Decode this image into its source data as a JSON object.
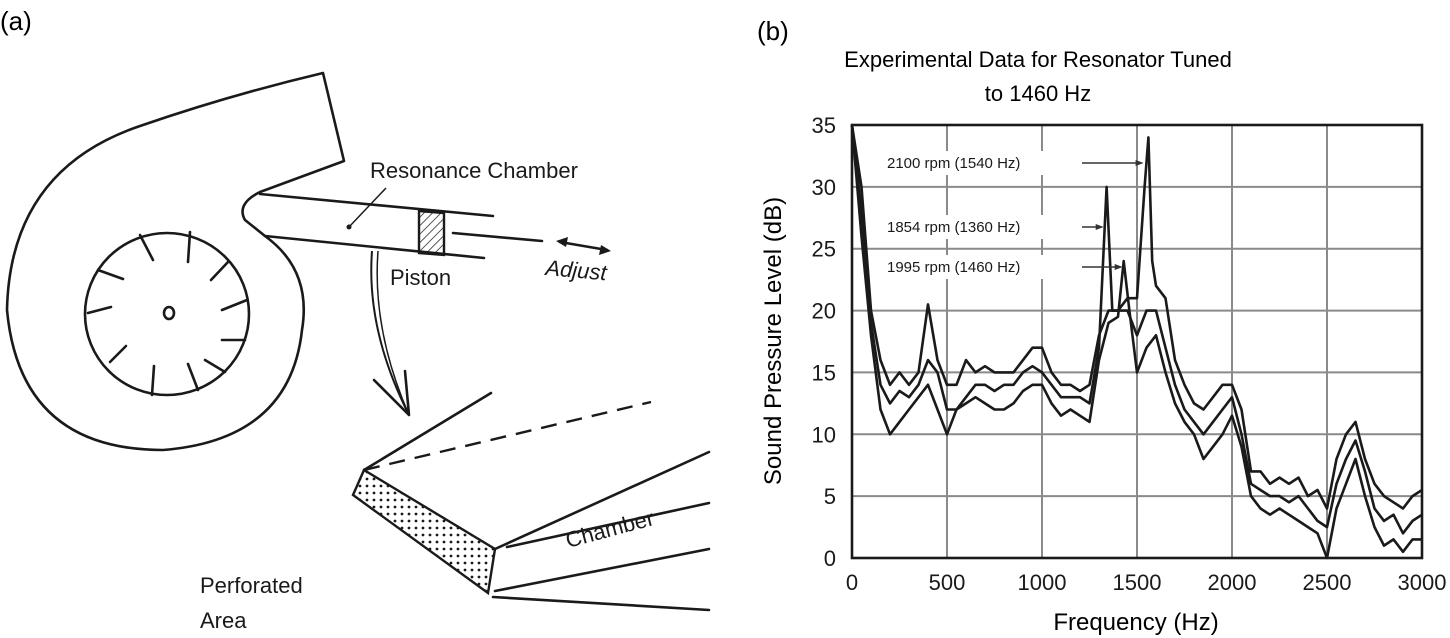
{
  "panel_a": {
    "label": "(a)",
    "resonance_chamber": "Resonance Chamber",
    "piston": "Piston",
    "adjust": "Adjust",
    "chamber": "Chamber",
    "perforated_line1": "Perforated",
    "perforated_line2": "Area"
  },
  "panel_b": {
    "label": "(b)"
  },
  "chart_data": {
    "type": "line",
    "title_line1": "Experimental Data for Resonator Tuned",
    "title_line2": "to 1460 Hz",
    "xlabel": "Frequency (Hz)",
    "ylabel": "Sound Pressure Level (dB)",
    "xlim": [
      0,
      3000
    ],
    "ylim": [
      0,
      35
    ],
    "xticks": [
      "0",
      "500",
      "1000",
      "1500",
      "2000",
      "2500",
      "3000"
    ],
    "yticks": [
      "0",
      "5",
      "10",
      "15",
      "20",
      "25",
      "30",
      "35"
    ],
    "grid": true,
    "line_color": "#1a1a1a",
    "annotations": [
      {
        "text": "2100 rpm (1540 Hz)",
        "x": 1540,
        "y": 32
      },
      {
        "text": "1854 rpm (1360 Hz)",
        "x": 1330,
        "y": 26.8
      },
      {
        "text": "1995 rpm (1460 Hz)",
        "x": 1430,
        "y": 23.5
      }
    ],
    "series": [
      {
        "points": [
          [
            0,
            35
          ],
          [
            50,
            30
          ],
          [
            100,
            20
          ],
          [
            150,
            16
          ],
          [
            200,
            14
          ],
          [
            250,
            15
          ],
          [
            300,
            14
          ],
          [
            350,
            15
          ],
          [
            400,
            20.5
          ],
          [
            450,
            16
          ],
          [
            500,
            14
          ],
          [
            550,
            14
          ],
          [
            600,
            16
          ],
          [
            650,
            15
          ],
          [
            700,
            15.5
          ],
          [
            750,
            15
          ],
          [
            800,
            15
          ],
          [
            850,
            15
          ],
          [
            900,
            16
          ],
          [
            950,
            17
          ],
          [
            1000,
            17
          ],
          [
            1050,
            15
          ],
          [
            1100,
            14
          ],
          [
            1150,
            14
          ],
          [
            1200,
            13.5
          ],
          [
            1250,
            14
          ],
          [
            1300,
            18
          ],
          [
            1350,
            20
          ],
          [
            1400,
            20
          ],
          [
            1450,
            21
          ],
          [
            1500,
            21
          ],
          [
            1540,
            30
          ],
          [
            1560,
            34
          ],
          [
            1580,
            24
          ],
          [
            1600,
            22
          ],
          [
            1650,
            21
          ],
          [
            1700,
            16
          ],
          [
            1750,
            14
          ],
          [
            1800,
            12.5
          ],
          [
            1850,
            12
          ],
          [
            1900,
            13
          ],
          [
            1950,
            14
          ],
          [
            2000,
            14
          ],
          [
            2050,
            12
          ],
          [
            2100,
            7
          ],
          [
            2150,
            7
          ],
          [
            2200,
            6
          ],
          [
            2250,
            6.5
          ],
          [
            2300,
            6
          ],
          [
            2350,
            6.5
          ],
          [
            2400,
            5
          ],
          [
            2450,
            5.5
          ],
          [
            2500,
            4
          ],
          [
            2550,
            8
          ],
          [
            2600,
            10
          ],
          [
            2650,
            11
          ],
          [
            2700,
            8
          ],
          [
            2750,
            6
          ],
          [
            2800,
            5
          ],
          [
            2850,
            4.5
          ],
          [
            2900,
            4
          ],
          [
            2950,
            5
          ],
          [
            3000,
            5.5
          ]
        ]
      },
      {
        "points": [
          [
            0,
            35
          ],
          [
            50,
            28
          ],
          [
            100,
            19
          ],
          [
            150,
            14
          ],
          [
            200,
            12.5
          ],
          [
            250,
            13.5
          ],
          [
            300,
            13
          ],
          [
            350,
            14
          ],
          [
            400,
            16
          ],
          [
            450,
            15
          ],
          [
            500,
            12
          ],
          [
            550,
            12
          ],
          [
            600,
            13
          ],
          [
            650,
            14
          ],
          [
            700,
            14
          ],
          [
            750,
            13.5
          ],
          [
            800,
            14
          ],
          [
            850,
            14
          ],
          [
            900,
            15
          ],
          [
            950,
            15.5
          ],
          [
            1000,
            15
          ],
          [
            1050,
            14
          ],
          [
            1100,
            13
          ],
          [
            1150,
            13
          ],
          [
            1200,
            13
          ],
          [
            1250,
            12.5
          ],
          [
            1300,
            17
          ],
          [
            1340,
            30
          ],
          [
            1370,
            20
          ],
          [
            1400,
            20
          ],
          [
            1450,
            20
          ],
          [
            1500,
            18
          ],
          [
            1550,
            20
          ],
          [
            1600,
            20
          ],
          [
            1650,
            17
          ],
          [
            1700,
            14
          ],
          [
            1750,
            12
          ],
          [
            1800,
            11
          ],
          [
            1850,
            10
          ],
          [
            1900,
            11
          ],
          [
            1950,
            12
          ],
          [
            2000,
            13
          ],
          [
            2050,
            10
          ],
          [
            2100,
            6
          ],
          [
            2150,
            5.5
          ],
          [
            2200,
            5
          ],
          [
            2250,
            5
          ],
          [
            2300,
            4.5
          ],
          [
            2350,
            5
          ],
          [
            2400,
            4
          ],
          [
            2450,
            3
          ],
          [
            2500,
            2.5
          ],
          [
            2550,
            6
          ],
          [
            2600,
            8
          ],
          [
            2650,
            9.5
          ],
          [
            2700,
            7
          ],
          [
            2750,
            4
          ],
          [
            2800,
            3
          ],
          [
            2850,
            3.5
          ],
          [
            2900,
            2
          ],
          [
            2950,
            3
          ],
          [
            3000,
            3.5
          ]
        ]
      },
      {
        "points": [
          [
            0,
            35
          ],
          [
            50,
            26
          ],
          [
            100,
            18
          ],
          [
            150,
            12
          ],
          [
            200,
            10
          ],
          [
            250,
            11
          ],
          [
            300,
            12
          ],
          [
            350,
            13
          ],
          [
            400,
            14
          ],
          [
            450,
            12
          ],
          [
            500,
            10
          ],
          [
            550,
            12
          ],
          [
            600,
            12.5
          ],
          [
            650,
            13
          ],
          [
            700,
            12.5
          ],
          [
            750,
            12
          ],
          [
            800,
            12
          ],
          [
            850,
            12.5
          ],
          [
            900,
            13.5
          ],
          [
            950,
            14
          ],
          [
            1000,
            14
          ],
          [
            1050,
            12.5
          ],
          [
            1100,
            11.5
          ],
          [
            1150,
            12
          ],
          [
            1200,
            11.5
          ],
          [
            1250,
            11
          ],
          [
            1300,
            16
          ],
          [
            1350,
            19
          ],
          [
            1400,
            19.5
          ],
          [
            1430,
            24
          ],
          [
            1460,
            20
          ],
          [
            1500,
            15
          ],
          [
            1550,
            17
          ],
          [
            1600,
            18
          ],
          [
            1650,
            15
          ],
          [
            1700,
            12.5
          ],
          [
            1750,
            11
          ],
          [
            1800,
            10
          ],
          [
            1850,
            8
          ],
          [
            1900,
            9
          ],
          [
            1950,
            10
          ],
          [
            2000,
            11.5
          ],
          [
            2050,
            9
          ],
          [
            2100,
            5
          ],
          [
            2150,
            4
          ],
          [
            2200,
            3.5
          ],
          [
            2250,
            4
          ],
          [
            2300,
            3.5
          ],
          [
            2350,
            3
          ],
          [
            2400,
            2.5
          ],
          [
            2450,
            2
          ],
          [
            2500,
            0
          ],
          [
            2550,
            4
          ],
          [
            2600,
            6
          ],
          [
            2650,
            8
          ],
          [
            2700,
            5
          ],
          [
            2750,
            2.5
          ],
          [
            2800,
            1
          ],
          [
            2850,
            1.5
          ],
          [
            2900,
            0.5
          ],
          [
            2950,
            1.5
          ],
          [
            3000,
            1.5
          ]
        ]
      }
    ]
  }
}
